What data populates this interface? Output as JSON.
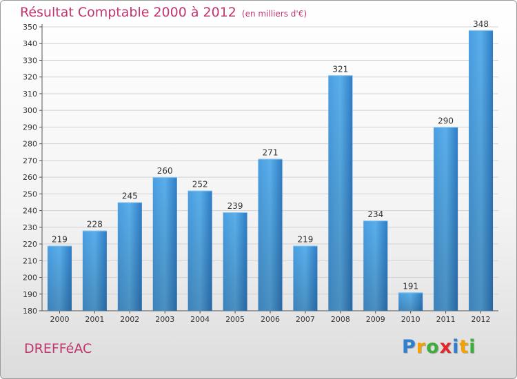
{
  "header": {
    "title": "Résultat Comptable 2000 à 2012",
    "subtitle": "(en milliers d'€)"
  },
  "footer": {
    "commune": "DREFFéAC",
    "logo_letters": [
      {
        "char": "P",
        "color": "#2f7fd0"
      },
      {
        "char": "r",
        "color": "#f5a200"
      },
      {
        "char": "o",
        "color": "#3cae3a"
      },
      {
        "char": "x",
        "color": "#e3262b"
      },
      {
        "char": "i",
        "color": "#2f7fd0"
      },
      {
        "char": "t",
        "color": "#f5a200"
      },
      {
        "char": "i",
        "color": "#3cae3a"
      }
    ]
  },
  "chart_data": {
    "type": "bar",
    "title": "Résultat Comptable 2000 à 2012",
    "xlabel": "",
    "ylabel": "",
    "categories": [
      "2000",
      "2001",
      "2002",
      "2003",
      "2004",
      "2005",
      "2006",
      "2007",
      "2008",
      "2009",
      "2010",
      "2011",
      "2012"
    ],
    "values": [
      219,
      228,
      245,
      260,
      252,
      239,
      271,
      219,
      321,
      234,
      191,
      290,
      348
    ],
    "ylim": [
      180,
      350
    ],
    "yticks": [
      180,
      190,
      200,
      210,
      220,
      230,
      240,
      250,
      260,
      270,
      280,
      290,
      300,
      310,
      320,
      330,
      340,
      350
    ],
    "grid": true,
    "bar_color": "#3b8fd6"
  }
}
